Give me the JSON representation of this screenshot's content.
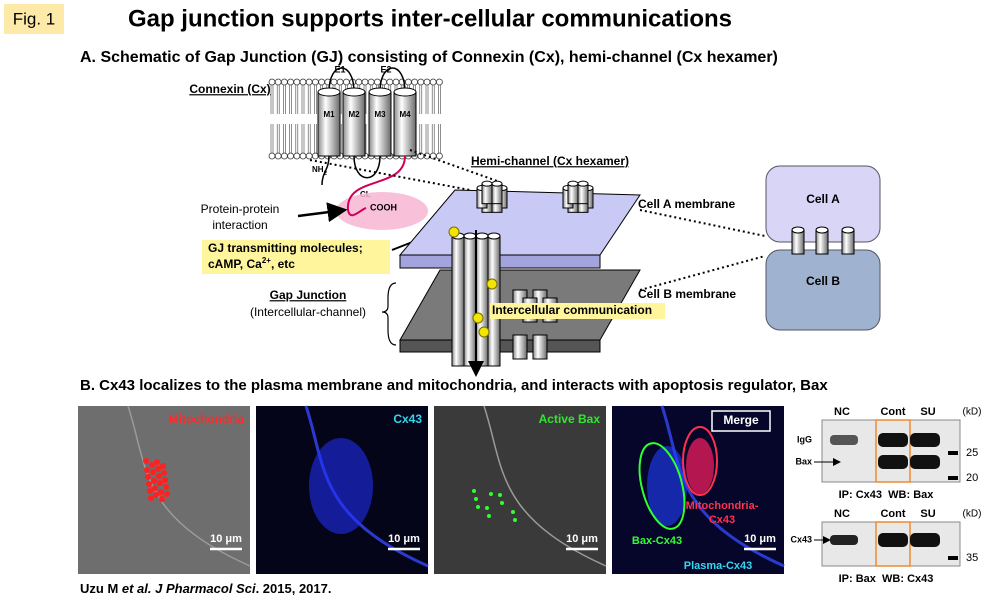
{
  "header": {
    "fig_label": "Fig. 1",
    "title": "Gap junction supports inter-cellular communications"
  },
  "section_a": {
    "title": "A. Schematic of Gap Junction (GJ) consisting of Connexin (Cx), hemi-channel (Cx hexamer)",
    "connexin": {
      "label": "Connexin (Cx)",
      "loops": [
        "E1",
        "E2"
      ],
      "helices": [
        "M1",
        "M2",
        "M3",
        "M4"
      ],
      "n_term": [
        "NH",
        "2"
      ],
      "cl": "CL",
      "c_term": "COOH"
    },
    "ppi": [
      "Protein-protein",
      "interaction"
    ],
    "molecules": {
      "line1": "GJ transmitting molecules;",
      "line2": [
        "cAMP, Ca",
        "2+",
        ", etc"
      ]
    },
    "hemichannel": "Hemi-channel (Cx hexamer)",
    "membranes": [
      "Cell A membrane",
      "Cell B membrane"
    ],
    "gap_junction": [
      "Gap Junction",
      "(Intercellular-channel)"
    ],
    "communication": "Intercellular communication",
    "cells": [
      "Cell A",
      "Cell B"
    ]
  },
  "section_b": {
    "title": "B. Cx43 localizes to the plasma membrane and mitochondria, and interacts with apoptosis regulator, Bax",
    "panels": [
      {
        "label": "Mitochondria",
        "scale": "10 μm"
      },
      {
        "label": "Cx43",
        "scale": "10 μm"
      },
      {
        "label": "Active Bax",
        "scale": "10 μm"
      },
      {
        "label": "Merge",
        "scale": "10 μm",
        "annotations": {
          "bax": "Bax-Cx43",
          "mito": [
            "Mitochondria-",
            "Cx43"
          ],
          "plasma": "Plasma-Cx43"
        }
      }
    ],
    "blots": [
      {
        "lanes": [
          "NC",
          "Cont",
          "SU"
        ],
        "unit": "(kD)",
        "bands": [
          "IgG",
          "Bax"
        ],
        "markers": [
          "25",
          "20"
        ],
        "caption": "IP: Cx43  WB: Bax"
      },
      {
        "lanes": [
          "NC",
          "Cont",
          "SU"
        ],
        "unit": "(kD)",
        "bands": [
          "Cx43"
        ],
        "markers": [
          "35"
        ],
        "caption": "IP: Bax  WB: Cx43"
      }
    ]
  },
  "citation": [
    "Uzu M ",
    "et al. J Pharmacol Sci",
    ". 2015, 2017."
  ]
}
